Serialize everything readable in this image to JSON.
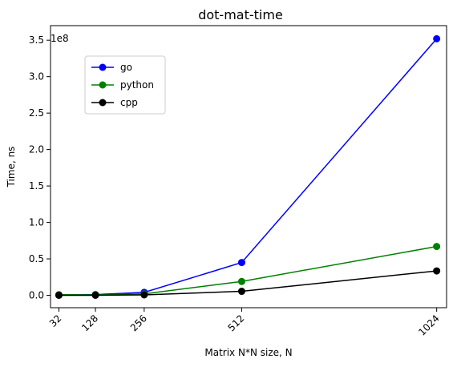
{
  "chart_data": {
    "type": "line",
    "title": "dot-mat-time",
    "xlabel": "Matrix N*N size, N",
    "ylabel": "Time, ns",
    "y_offset_label": "1e8",
    "x": [
      32,
      128,
      256,
      512,
      1024
    ],
    "x_tick_labels": [
      "32",
      "128",
      "256",
      "512",
      "1024"
    ],
    "y_ticks": [
      0.0,
      0.5,
      1.0,
      1.5,
      2.0,
      2.5,
      3.0,
      3.5
    ],
    "y_tick_labels": [
      "0.0",
      "0.5",
      "1.0",
      "1.5",
      "2.0",
      "2.5",
      "3.0",
      "3.5"
    ],
    "xlim": [
      10,
      1050
    ],
    "ylim": [
      -17000000,
      370000000
    ],
    "grid": false,
    "legend_position": "upper-left",
    "series": [
      {
        "name": "go",
        "color": "#0000ff",
        "values": [
          300000,
          1000000,
          4000000,
          45000000,
          352000000
        ]
      },
      {
        "name": "python",
        "color": "#008000",
        "values": [
          800000,
          600000,
          2000000,
          19000000,
          67000000
        ]
      },
      {
        "name": "cpp",
        "color": "#000000",
        "values": [
          100000,
          100000,
          600000,
          5500000,
          33500000
        ]
      }
    ]
  }
}
